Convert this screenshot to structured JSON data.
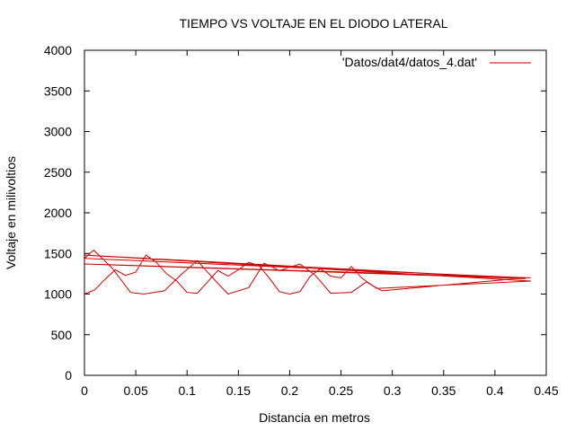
{
  "chart_data": {
    "type": "line",
    "title": "TIEMPO VS VOLTAJE EN EL DIODO LATERAL",
    "xlabel": "Distancia en metros",
    "ylabel": "Voltaje en milivoltios",
    "xlim": [
      0,
      0.45
    ],
    "ylim": [
      0,
      4000
    ],
    "x_ticks": [
      "0",
      "0.05",
      "0.1",
      "0.15",
      "0.2",
      "0.25",
      "0.3",
      "0.35",
      "0.4",
      "0.45"
    ],
    "y_ticks": [
      "0",
      "500",
      "1000",
      "1500",
      "2000",
      "2500",
      "3000",
      "3500",
      "4000"
    ],
    "grid": false,
    "legend_position": "top-right",
    "series": [
      {
        "name": "'Datos/dat4/datos_4.dat'",
        "color": "#cc0000",
        "x": [
          0.0,
          0.01,
          0.02,
          0.03,
          0.04,
          0.05,
          0.06,
          0.07,
          0.08,
          0.09,
          0.1,
          0.11,
          0.12,
          0.13,
          0.14,
          0.15,
          0.16,
          0.17,
          0.18,
          0.19,
          0.2,
          0.21,
          0.22,
          0.23,
          0.24,
          0.25,
          0.26,
          0.27,
          0.28,
          0.29,
          0.43,
          0.0,
          0.009,
          0.027,
          0.045,
          0.058,
          0.078,
          0.095,
          0.11,
          0.125,
          0.14,
          0.16,
          0.175,
          0.19,
          0.21,
          0.225,
          0.24,
          0.26,
          0.275,
          0.285,
          0.435,
          0.0,
          0.43,
          0.0,
          0.435
        ],
        "y": [
          1000,
          1050,
          1180,
          1300,
          1230,
          1270,
          1480,
          1390,
          1250,
          1160,
          1020,
          1010,
          1150,
          1290,
          1220,
          1300,
          1390,
          1350,
          1200,
          1030,
          1000,
          1030,
          1220,
          1310,
          1220,
          1200,
          1340,
          1200,
          1110,
          1040,
          1200,
          1440,
          1540,
          1320,
          1020,
          1000,
          1040,
          1250,
          1410,
          1200,
          1000,
          1080,
          1380,
          1290,
          1370,
          1230,
          1010,
          1020,
          1150,
          1070,
          1160,
          1480,
          1190,
          1370,
          1200
        ]
      }
    ]
  }
}
